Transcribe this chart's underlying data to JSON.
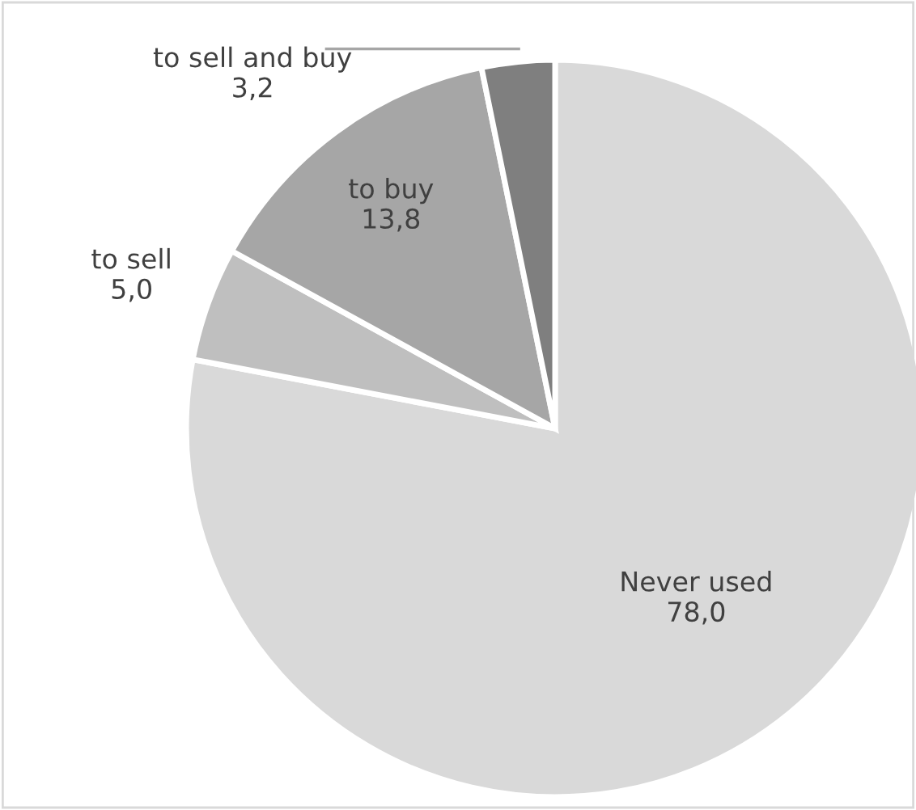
{
  "chart_data": {
    "type": "pie",
    "categories": [
      "Never used",
      "to sell",
      "to buy",
      "to sell and buy"
    ],
    "values": [
      78.0,
      5.0,
      13.8,
      3.2
    ],
    "value_labels": [
      "78,0",
      "5,0",
      "13,8",
      "3,2"
    ],
    "colors": [
      "#d9d9d9",
      "#bfbfbf",
      "#a6a6a6",
      "#7f7f7f"
    ],
    "legend": false
  }
}
